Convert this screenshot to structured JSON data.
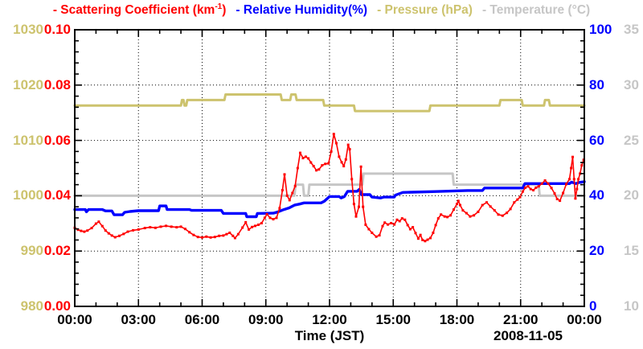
{
  "chart_data": {
    "type": "line",
    "title": "",
    "legend": [
      {
        "id": "scattering",
        "pre": "- Scattering Coefficient (km",
        "sup": "-1",
        "post": ")",
        "color": "#ff0000"
      },
      {
        "id": "humidity",
        "pre": "- Relative Humidity(%)",
        "sup": "",
        "post": "",
        "color": "#0000ff"
      },
      {
        "id": "pressure",
        "pre": "- Pressure (hPa)",
        "sup": "",
        "post": "",
        "color": "#cdc36e"
      },
      {
        "id": "temperature",
        "pre": "- Temperature (°C)",
        "sup": "",
        "post": "",
        "color": "#c6c6c6"
      }
    ],
    "x_axis": {
      "label": "Time (JST)",
      "date_label": "2008-11-05",
      "range_hours": [
        0,
        24
      ],
      "major_step_hours": 3,
      "minor_step_hours": 1,
      "tick_labels": [
        "00:00",
        "03:00",
        "06:00",
        "09:00",
        "12:00",
        "15:00",
        "18:00",
        "21:00",
        "00:00"
      ],
      "grid": true
    },
    "y_axes": [
      {
        "id": "pressure",
        "side": "left-outer",
        "color": "#cdc36e",
        "range": [
          980,
          1030
        ],
        "tick_labels": [
          "1030",
          "1020",
          "1010",
          "1000",
          "990",
          "980"
        ]
      },
      {
        "id": "scattering",
        "side": "left-inner",
        "color": "#ff0000",
        "range": [
          0,
          0.1
        ],
        "tick_labels": [
          "0.10",
          "0.08",
          "0.06",
          "0.04",
          "0.02",
          "0.00"
        ]
      },
      {
        "id": "humidity",
        "side": "right-inner",
        "color": "#0000ff",
        "range": [
          0,
          100
        ],
        "tick_labels": [
          "100",
          "80",
          "60",
          "40",
          "20",
          "0"
        ]
      },
      {
        "id": "temperature",
        "side": "right-outer",
        "color": "#c6c6c6",
        "range": [
          10,
          35
        ],
        "tick_labels": [
          "35",
          "30",
          "25",
          "20",
          "15",
          "10"
        ]
      }
    ],
    "series": [
      {
        "name": "Pressure",
        "axis": "pressure",
        "color": "#cdc36e",
        "width": 3,
        "markers": false,
        "points": [
          [
            0,
            1016.3
          ],
          [
            5.0,
            1016.3
          ],
          [
            5.05,
            1017.3
          ],
          [
            5.12,
            1017.3
          ],
          [
            5.17,
            1016.3
          ],
          [
            5.25,
            1016.3
          ],
          [
            5.3,
            1017.3
          ],
          [
            7.05,
            1017.3
          ],
          [
            7.1,
            1018.3
          ],
          [
            9.7,
            1018.3
          ],
          [
            9.75,
            1017.3
          ],
          [
            10.15,
            1017.3
          ],
          [
            10.2,
            1018.3
          ],
          [
            10.4,
            1018.3
          ],
          [
            10.45,
            1017.3
          ],
          [
            11.7,
            1017.3
          ],
          [
            11.75,
            1016.3
          ],
          [
            13.15,
            1016.3
          ],
          [
            13.2,
            1015.3
          ],
          [
            16.7,
            1015.3
          ],
          [
            16.75,
            1016.3
          ],
          [
            20.0,
            1016.3
          ],
          [
            20.05,
            1017.3
          ],
          [
            21.05,
            1017.3
          ],
          [
            21.1,
            1016.3
          ],
          [
            22.1,
            1016.3
          ],
          [
            22.15,
            1017.3
          ],
          [
            22.33,
            1017.3
          ],
          [
            22.38,
            1016.3
          ],
          [
            24,
            1016.3
          ]
        ]
      },
      {
        "name": "Temperature",
        "axis": "temperature",
        "color": "#c6c6c6",
        "width": 3,
        "markers": false,
        "points": [
          [
            0,
            20
          ],
          [
            10.35,
            20
          ],
          [
            10.4,
            21
          ],
          [
            10.75,
            21
          ],
          [
            10.8,
            20
          ],
          [
            11.0,
            20
          ],
          [
            11.05,
            21
          ],
          [
            13.55,
            21
          ],
          [
            13.6,
            22
          ],
          [
            17.8,
            22
          ],
          [
            17.85,
            21
          ],
          [
            21.85,
            21
          ],
          [
            21.9,
            20
          ],
          [
            24,
            20
          ]
        ]
      },
      {
        "name": "Relative Humidity",
        "axis": "humidity",
        "color": "#0000ff",
        "width": 3.4,
        "markers": false,
        "points": [
          [
            0,
            35
          ],
          [
            0.5,
            35
          ],
          [
            0.55,
            34.2
          ],
          [
            0.65,
            35
          ],
          [
            1.3,
            35
          ],
          [
            1.45,
            34.5
          ],
          [
            1.75,
            34.5
          ],
          [
            1.85,
            33.1
          ],
          [
            2.25,
            33.1
          ],
          [
            2.35,
            34
          ],
          [
            2.6,
            34.3
          ],
          [
            3.0,
            34.6
          ],
          [
            3.95,
            34.6
          ],
          [
            4.0,
            36.3
          ],
          [
            4.3,
            36.3
          ],
          [
            4.35,
            35
          ],
          [
            5.4,
            35
          ],
          [
            5.5,
            34.7
          ],
          [
            6.9,
            34.7
          ],
          [
            7.0,
            33.6
          ],
          [
            8.05,
            33.6
          ],
          [
            8.1,
            32.4
          ],
          [
            8.55,
            32.4
          ],
          [
            8.6,
            33.6
          ],
          [
            9.35,
            33.7
          ],
          [
            9.55,
            34.1
          ],
          [
            9.85,
            35.0
          ],
          [
            10.1,
            35.6
          ],
          [
            10.35,
            36.6
          ],
          [
            10.6,
            37.0
          ],
          [
            10.8,
            37.4
          ],
          [
            11.6,
            37.4
          ],
          [
            11.75,
            38.0
          ],
          [
            12.0,
            39.7
          ],
          [
            12.45,
            39.7
          ],
          [
            12.55,
            39.2
          ],
          [
            12.7,
            39.7
          ],
          [
            12.85,
            41.6
          ],
          [
            13.3,
            41.6
          ],
          [
            13.4,
            42.3
          ],
          [
            13.5,
            40.4
          ],
          [
            13.9,
            40.4
          ],
          [
            14.0,
            39.5
          ],
          [
            14.4,
            39.2
          ],
          [
            14.55,
            39.5
          ],
          [
            15.05,
            39.5
          ],
          [
            15.1,
            40.2
          ],
          [
            15.45,
            41.2
          ],
          [
            17.0,
            41.5
          ],
          [
            18.5,
            41.9
          ],
          [
            19.2,
            41.9
          ],
          [
            19.3,
            42.8
          ],
          [
            21.1,
            42.8
          ],
          [
            21.2,
            44.4
          ],
          [
            23.3,
            44.4
          ],
          [
            23.4,
            44.9
          ],
          [
            23.6,
            44.4
          ],
          [
            23.75,
            44.8
          ],
          [
            24,
            45.1
          ]
        ]
      },
      {
        "name": "Scattering Coefficient",
        "axis": "scattering",
        "color": "#ff0000",
        "width": 1.6,
        "markers": true,
        "points": [
          [
            0,
            0.0284
          ],
          [
            0.15,
            0.0277
          ],
          [
            0.3,
            0.0273
          ],
          [
            0.45,
            0.027
          ],
          [
            0.6,
            0.0274
          ],
          [
            0.8,
            0.0283
          ],
          [
            1.0,
            0.0299
          ],
          [
            1.13,
            0.0306
          ],
          [
            1.3,
            0.029
          ],
          [
            1.45,
            0.0274
          ],
          [
            1.6,
            0.0264
          ],
          [
            1.75,
            0.0256
          ],
          [
            1.9,
            0.025
          ],
          [
            2.1,
            0.0255
          ],
          [
            2.3,
            0.0262
          ],
          [
            2.5,
            0.027
          ],
          [
            2.75,
            0.0275
          ],
          [
            3.0,
            0.0278
          ],
          [
            3.3,
            0.0283
          ],
          [
            3.55,
            0.0286
          ],
          [
            3.8,
            0.0284
          ],
          [
            4.05,
            0.0288
          ],
          [
            4.3,
            0.0291
          ],
          [
            4.55,
            0.0288
          ],
          [
            4.8,
            0.0286
          ],
          [
            5.0,
            0.0288
          ],
          [
            5.2,
            0.028
          ],
          [
            5.4,
            0.0268
          ],
          [
            5.6,
            0.0258
          ],
          [
            5.8,
            0.0251
          ],
          [
            6.0,
            0.0249
          ],
          [
            6.2,
            0.0252
          ],
          [
            6.4,
            0.0249
          ],
          [
            6.6,
            0.0251
          ],
          [
            6.8,
            0.0255
          ],
          [
            7.0,
            0.0256
          ],
          [
            7.15,
            0.0261
          ],
          [
            7.3,
            0.0266
          ],
          [
            7.45,
            0.0255
          ],
          [
            7.55,
            0.0247
          ],
          [
            7.7,
            0.0261
          ],
          [
            7.9,
            0.0285
          ],
          [
            8.05,
            0.0304
          ],
          [
            8.2,
            0.0278
          ],
          [
            8.35,
            0.0287
          ],
          [
            8.5,
            0.0291
          ],
          [
            8.65,
            0.0295
          ],
          [
            8.8,
            0.0301
          ],
          [
            8.95,
            0.032
          ],
          [
            9.05,
            0.0333
          ],
          [
            9.2,
            0.032
          ],
          [
            9.35,
            0.0315
          ],
          [
            9.5,
            0.032
          ],
          [
            9.65,
            0.0355
          ],
          [
            9.78,
            0.042
          ],
          [
            9.88,
            0.0477
          ],
          [
            10.0,
            0.04
          ],
          [
            10.12,
            0.0384
          ],
          [
            10.25,
            0.041
          ],
          [
            10.38,
            0.0435
          ],
          [
            10.5,
            0.05
          ],
          [
            10.62,
            0.0555
          ],
          [
            10.75,
            0.0536
          ],
          [
            10.88,
            0.0541
          ],
          [
            11.0,
            0.0535
          ],
          [
            11.12,
            0.052
          ],
          [
            11.25,
            0.0507
          ],
          [
            11.38,
            0.0492
          ],
          [
            11.5,
            0.0495
          ],
          [
            11.65,
            0.051
          ],
          [
            11.8,
            0.0515
          ],
          [
            11.95,
            0.0517
          ],
          [
            12.08,
            0.056
          ],
          [
            12.2,
            0.0623
          ],
          [
            12.32,
            0.059
          ],
          [
            12.45,
            0.0541
          ],
          [
            12.57,
            0.0521
          ],
          [
            12.67,
            0.0507
          ],
          [
            12.77,
            0.0531
          ],
          [
            12.88,
            0.0584
          ],
          [
            12.95,
            0.0568
          ],
          [
            13.05,
            0.046
          ],
          [
            13.15,
            0.037
          ],
          [
            13.25,
            0.0325
          ],
          [
            13.38,
            0.036
          ],
          [
            13.48,
            0.0505
          ],
          [
            13.58,
            0.036
          ],
          [
            13.7,
            0.0295
          ],
          [
            13.85,
            0.0279
          ],
          [
            14.0,
            0.0266
          ],
          [
            14.2,
            0.0252
          ],
          [
            14.35,
            0.0257
          ],
          [
            14.5,
            0.029
          ],
          [
            14.6,
            0.0303
          ],
          [
            14.75,
            0.0296
          ],
          [
            14.9,
            0.0301
          ],
          [
            15.05,
            0.0296
          ],
          [
            15.18,
            0.0313
          ],
          [
            15.3,
            0.0308
          ],
          [
            15.42,
            0.0318
          ],
          [
            15.55,
            0.0313
          ],
          [
            15.68,
            0.0294
          ],
          [
            15.8,
            0.0279
          ],
          [
            15.92,
            0.0286
          ],
          [
            16.05,
            0.0265
          ],
          [
            16.18,
            0.0245
          ],
          [
            16.28,
            0.0258
          ],
          [
            16.38,
            0.024
          ],
          [
            16.5,
            0.0236
          ],
          [
            16.62,
            0.0241
          ],
          [
            16.75,
            0.0247
          ],
          [
            16.88,
            0.0266
          ],
          [
            17.0,
            0.0294
          ],
          [
            17.12,
            0.0318
          ],
          [
            17.25,
            0.0332
          ],
          [
            17.42,
            0.0325
          ],
          [
            17.55,
            0.0323
          ],
          [
            17.7,
            0.0329
          ],
          [
            17.85,
            0.035
          ],
          [
            18.0,
            0.037
          ],
          [
            18.07,
            0.0381
          ],
          [
            18.15,
            0.0366
          ],
          [
            18.28,
            0.0347
          ],
          [
            18.45,
            0.0337
          ],
          [
            18.62,
            0.0325
          ],
          [
            18.8,
            0.0329
          ],
          [
            19.0,
            0.0342
          ],
          [
            19.2,
            0.0366
          ],
          [
            19.4,
            0.0376
          ],
          [
            19.58,
            0.0361
          ],
          [
            19.77,
            0.0347
          ],
          [
            19.95,
            0.0332
          ],
          [
            20.15,
            0.0328
          ],
          [
            20.35,
            0.0338
          ],
          [
            20.52,
            0.0352
          ],
          [
            20.7,
            0.0376
          ],
          [
            20.85,
            0.0386
          ],
          [
            20.97,
            0.0395
          ],
          [
            21.1,
            0.0415
          ],
          [
            21.22,
            0.0429
          ],
          [
            21.35,
            0.0434
          ],
          [
            21.47,
            0.0424
          ],
          [
            21.6,
            0.042
          ],
          [
            21.72,
            0.0429
          ],
          [
            21.85,
            0.0434
          ],
          [
            22.0,
            0.0444
          ],
          [
            22.15,
            0.0455
          ],
          [
            22.3,
            0.0444
          ],
          [
            22.45,
            0.0428
          ],
          [
            22.6,
            0.0408
          ],
          [
            22.72,
            0.0388
          ],
          [
            22.85,
            0.0382
          ],
          [
            23.0,
            0.041
          ],
          [
            23.15,
            0.0442
          ],
          [
            23.3,
            0.046
          ],
          [
            23.38,
            0.05
          ],
          [
            23.45,
            0.054
          ],
          [
            23.52,
            0.046
          ],
          [
            23.58,
            0.039
          ],
          [
            23.65,
            0.0424
          ],
          [
            23.72,
            0.046
          ],
          [
            23.8,
            0.048
          ],
          [
            23.88,
            0.051
          ],
          [
            23.97,
            0.053
          ]
        ]
      }
    ]
  }
}
